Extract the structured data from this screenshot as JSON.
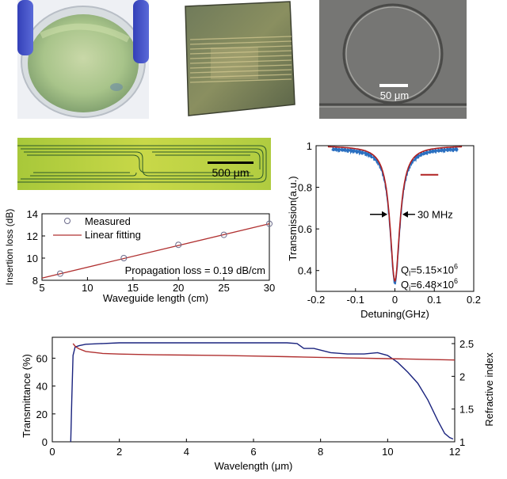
{
  "photos": {
    "scale_bar_ring": "50 μm",
    "scale_bar_waveguide": "500 μm"
  },
  "chart_data": [
    {
      "type": "scatter",
      "id": "insertion-loss",
      "xlabel": "Waveguide length (cm)",
      "ylabel": "Insertion loss (dB)",
      "xlim": [
        5,
        30
      ],
      "ylim": [
        8,
        14
      ],
      "xticks": [
        5,
        10,
        15,
        20,
        25,
        30
      ],
      "yticks": [
        8,
        10,
        12,
        14
      ],
      "legend": {
        "placement": "top-left",
        "entries": [
          "Measured",
          "Linear fitting"
        ]
      },
      "series": [
        {
          "name": "Measured",
          "x": [
            7,
            14,
            20,
            25,
            30
          ],
          "y": [
            8.6,
            10.0,
            11.2,
            12.1,
            13.1
          ],
          "color": "#6a6a8a"
        },
        {
          "name": "Linear fitting",
          "x": [
            5,
            30
          ],
          "y": [
            8.2,
            13.1
          ],
          "color": "#b03030"
        }
      ],
      "annotation": "Propagation loss = 0.19 dB/cm"
    },
    {
      "type": "line",
      "id": "resonance",
      "xlabel": "Detuning(GHz)",
      "ylabel": "Transmission(a.u.)",
      "xlim": [
        -0.2,
        0.2
      ],
      "ylim": [
        0.3,
        1.0
      ],
      "xticks": [
        -0.2,
        -0.1,
        0,
        0.1,
        0.2
      ],
      "yticks": [
        0.4,
        0.6,
        0.8,
        1
      ],
      "resonance": {
        "center_ghz": 0.0,
        "min_transmission": 0.35,
        "fwhm_ghz": 0.03
      },
      "colors": {
        "data": "#2a6fc0",
        "fit": "#b02020"
      },
      "annotations": {
        "linewidth": "30 MHz",
        "ql": "Q",
        "ql_sub": "l",
        "ql_value": "=5.15×10",
        "ql_exp": "6",
        "qi": "Q",
        "qi_sub": "i",
        "qi_value": "=6.48×10",
        "qi_exp": "6"
      }
    },
    {
      "type": "line",
      "id": "transmittance",
      "xlabel": "Wavelength (μm)",
      "ylabel": "Transmittance (%)",
      "y2label": "Refractive index",
      "xlim": [
        0,
        12
      ],
      "ylim": [
        0,
        75
      ],
      "y2lim": [
        1,
        2.5
      ],
      "xticks": [
        0,
        2,
        4,
        6,
        8,
        10,
        12
      ],
      "yticks": [
        0,
        20,
        40,
        60
      ],
      "y2ticks": [
        1,
        1.5,
        2,
        2.5
      ],
      "series": [
        {
          "name": "Transmittance",
          "axis": "left",
          "color": "#1a237e",
          "x": [
            0.55,
            0.58,
            0.62,
            0.68,
            0.8,
            1.0,
            1.5,
            2.0,
            3.0,
            4.0,
            5.0,
            6.0,
            7.0,
            7.3,
            7.5,
            7.8,
            8.3,
            8.8,
            9.3,
            9.7,
            10.0,
            10.3,
            10.6,
            10.9,
            11.2,
            11.5,
            11.7,
            11.85,
            11.95
          ],
          "y": [
            0,
            30,
            62,
            68,
            69,
            70,
            70.5,
            71,
            71,
            71,
            71,
            71,
            71,
            70.5,
            67,
            67,
            64,
            63,
            63,
            64,
            62,
            57,
            50,
            42,
            30,
            15,
            6,
            3,
            2
          ]
        },
        {
          "name": "Refractive index",
          "axis": "right",
          "color": "#b03030",
          "x": [
            0.62,
            0.7,
            0.8,
            1.0,
            1.5,
            2,
            3,
            4,
            5,
            6,
            7,
            8,
            9,
            10,
            11,
            12
          ],
          "y": [
            2.5,
            2.45,
            2.42,
            2.38,
            2.35,
            2.34,
            2.33,
            2.325,
            2.32,
            2.31,
            2.3,
            2.29,
            2.28,
            2.27,
            2.26,
            2.25
          ]
        }
      ]
    }
  ]
}
